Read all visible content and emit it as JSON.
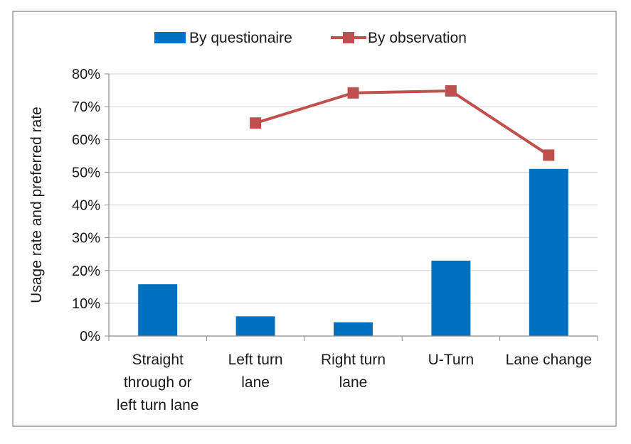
{
  "chart_data": {
    "type": "bar",
    "categories": [
      [
        "Straight",
        "through or",
        "left turn lane"
      ],
      [
        "Left turn",
        "lane"
      ],
      [
        "Right turn",
        "lane"
      ],
      [
        "U-Turn"
      ],
      [
        "Lane change"
      ]
    ],
    "series": [
      {
        "name": "By questionaire",
        "type": "bar",
        "color": "#0070C0",
        "values": [
          15.8,
          6.0,
          4.2,
          23.0,
          51.0
        ]
      },
      {
        "name": "By observation",
        "type": "line",
        "marker": "square",
        "color": "#C0504D",
        "values": [
          null,
          65.0,
          74.2,
          74.8,
          55.2
        ]
      }
    ],
    "xlabel": "",
    "ylabel": "Usage rate and preferred rate",
    "ylim": [
      0,
      80
    ],
    "yticks": [
      0,
      10,
      20,
      30,
      40,
      50,
      60,
      70,
      80
    ],
    "ytick_suffix": "%",
    "grid": true,
    "legend": "top-center"
  }
}
